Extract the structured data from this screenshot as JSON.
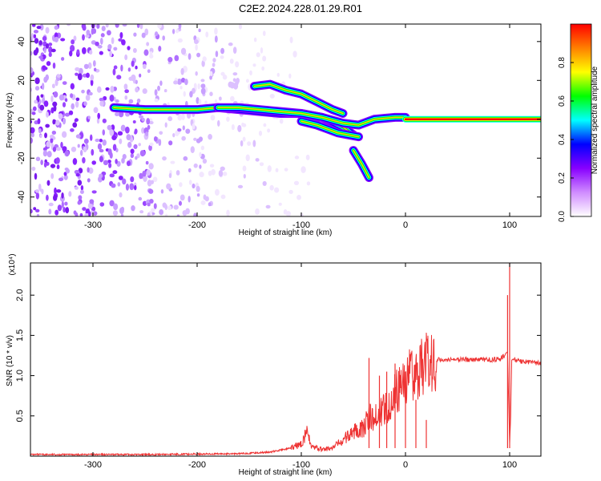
{
  "title": "C2E2.2024.228.01.29.R01",
  "chart_data": [
    {
      "type": "heatmap",
      "xlabel": "Height of straight line (km)",
      "ylabel": "Frequency (Hz)",
      "xlim": [
        -360,
        130
      ],
      "ylim": [
        -50,
        49
      ],
      "xticks": [
        -300,
        -200,
        -100,
        0,
        100
      ],
      "yticks": [
        -40,
        -20,
        0,
        20,
        40
      ],
      "colorbar": {
        "label": "Normalized spectral amplitude",
        "range": [
          0,
          1
        ],
        "ticks": [
          0.0,
          0.2,
          0.4,
          0.6,
          0.8
        ],
        "tick_labels": [
          "0.0",
          "0.2",
          "0.4",
          "0.6",
          "0.8"
        ],
        "colormap": [
          "#ffffff",
          "#d08cff",
          "#8800ff",
          "#0000ff",
          "#00ffff",
          "#00ff00",
          "#ffff00",
          "#ff8000",
          "#ff0000"
        ]
      },
      "ridges": [
        {
          "x": [
            -280,
            -250,
            -220,
            -200,
            -180,
            -160,
            -140,
            -120,
            -100,
            -80,
            -60,
            -50
          ],
          "y": [
            6,
            5,
            5,
            5,
            6,
            5,
            4,
            3,
            3,
            1,
            -4,
            -8
          ]
        },
        {
          "x": [
            -180,
            -160,
            -140,
            -120,
            -100,
            -80,
            -60,
            -45,
            -30,
            -10,
            0
          ],
          "y": [
            6,
            6,
            5,
            4,
            3,
            1,
            -2,
            -3,
            0,
            1,
            1
          ]
        },
        {
          "x": [
            -145,
            -130,
            -115,
            -100,
            -85,
            -70,
            -60
          ],
          "y": [
            17,
            18,
            15,
            13,
            9,
            5,
            3
          ]
        },
        {
          "x": [
            -100,
            -85,
            -75,
            -65,
            -55,
            -45
          ],
          "y": [
            -1,
            -3,
            -5,
            -7,
            -8,
            -9
          ]
        },
        {
          "x": [
            -50,
            -42,
            -35
          ],
          "y": [
            -16,
            -23,
            -30
          ]
        },
        {
          "x": [
            0,
            100,
            130
          ],
          "y": [
            0,
            0,
            0
          ]
        }
      ],
      "noise_region_x": [
        -360,
        -150
      ],
      "flat_band_x": [
        0,
        130
      ]
    },
    {
      "type": "line",
      "xlabel": "Height of straight line (km)",
      "ylabel": "SNR (10 * v/v)",
      "y_multiplier": "(x10⁴)",
      "xlim": [
        -360,
        130
      ],
      "ylim": [
        0,
        2.4
      ],
      "xticks": [
        -300,
        -200,
        -100,
        0,
        100
      ],
      "yticks": [
        0.5,
        1.0,
        1.5,
        2.0
      ],
      "ytick_labels": [
        "0.5",
        "1.0",
        "1.5",
        "2.0"
      ],
      "color": "#ee3333",
      "series": [
        {
          "x": [
            -360,
            -250,
            -160,
            -130,
            -110,
            -100,
            -95,
            -90,
            -80,
            -70,
            -60,
            -50,
            -45,
            -40,
            -35,
            -30,
            -25,
            -20,
            -15,
            -10,
            -5,
            0,
            10,
            20,
            30,
            40,
            60,
            80,
            90,
            95,
            98,
            100,
            101,
            102,
            105,
            110,
            120,
            130
          ],
          "y": [
            0.02,
            0.02,
            0.03,
            0.05,
            0.1,
            0.15,
            0.3,
            0.12,
            0.08,
            0.1,
            0.2,
            0.3,
            0.35,
            0.35,
            0.5,
            0.45,
            0.55,
            0.6,
            0.65,
            0.8,
            0.85,
            0.95,
            1.05,
            1.15,
            1.2,
            1.2,
            1.2,
            1.2,
            1.2,
            1.25,
            1.3,
            0.15,
            0.5,
            1.2,
            1.2,
            1.18,
            1.17,
            1.15
          ]
        },
        {
          "x": [
            -35,
            -25,
            -18,
            -10,
            0,
            10,
            20,
            98,
            100
          ],
          "y": [
            1.22,
            1.0,
            1.05,
            1.15,
            1.05,
            0.7,
            0.45,
            2.0,
            2.4
          ]
        }
      ]
    }
  ]
}
